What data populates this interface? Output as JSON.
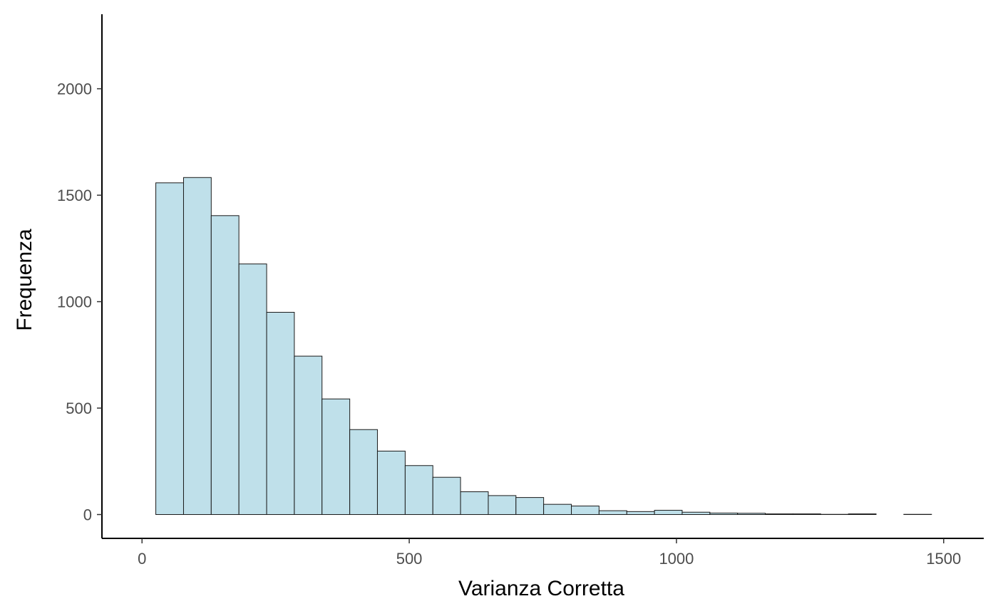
{
  "chart_data": {
    "type": "bar",
    "title": "",
    "xlabel": "Varianza Corretta",
    "ylabel": "Frequenza",
    "xlim": [
      -75,
      1575
    ],
    "ylim": [
      -112,
      2350
    ],
    "x_ticks": [
      0,
      500,
      1000,
      1500
    ],
    "y_ticks": [
      0,
      500,
      1000,
      1500,
      2000
    ],
    "grid": false,
    "legend": "none",
    "bar_fill": "#bfe0ea",
    "bar_stroke": "#1a1a1a",
    "bins": [
      {
        "x0": 25.8,
        "x1": 77.7,
        "count": 1558
      },
      {
        "x0": 77.7,
        "x1": 129.5,
        "count": 1583
      },
      {
        "x0": 129.5,
        "x1": 181.3,
        "count": 1404
      },
      {
        "x0": 181.3,
        "x1": 233.2,
        "count": 1177
      },
      {
        "x0": 233.2,
        "x1": 285.0,
        "count": 950
      },
      {
        "x0": 285.0,
        "x1": 336.8,
        "count": 744
      },
      {
        "x0": 336.8,
        "x1": 388.7,
        "count": 543
      },
      {
        "x0": 388.7,
        "x1": 440.5,
        "count": 399
      },
      {
        "x0": 440.5,
        "x1": 492.4,
        "count": 298
      },
      {
        "x0": 492.4,
        "x1": 544.2,
        "count": 230
      },
      {
        "x0": 544.2,
        "x1": 596.0,
        "count": 175
      },
      {
        "x0": 596.0,
        "x1": 647.9,
        "count": 107
      },
      {
        "x0": 647.9,
        "x1": 699.7,
        "count": 89
      },
      {
        "x0": 699.7,
        "x1": 751.5,
        "count": 80
      },
      {
        "x0": 751.5,
        "x1": 803.4,
        "count": 48
      },
      {
        "x0": 803.4,
        "x1": 855.2,
        "count": 40
      },
      {
        "x0": 855.2,
        "x1": 907.1,
        "count": 18
      },
      {
        "x0": 907.1,
        "x1": 958.9,
        "count": 14
      },
      {
        "x0": 958.9,
        "x1": 1010.7,
        "count": 20
      },
      {
        "x0": 1010.7,
        "x1": 1062.6,
        "count": 11
      },
      {
        "x0": 1062.6,
        "x1": 1114.4,
        "count": 7
      },
      {
        "x0": 1114.4,
        "x1": 1166.2,
        "count": 6
      },
      {
        "x0": 1166.2,
        "x1": 1218.1,
        "count": 3
      },
      {
        "x0": 1218.1,
        "x1": 1269.9,
        "count": 3
      },
      {
        "x0": 1269.9,
        "x1": 1321.8,
        "count": 1
      },
      {
        "x0": 1321.8,
        "x1": 1373.6,
        "count": 3
      },
      {
        "x0": 1373.6,
        "x1": 1425.4,
        "count": 0
      },
      {
        "x0": 1425.4,
        "x1": 1477.3,
        "count": 1
      }
    ]
  }
}
